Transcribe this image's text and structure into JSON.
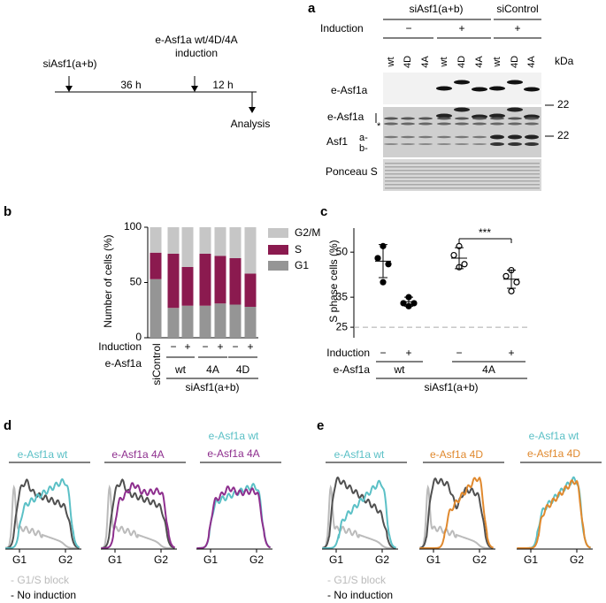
{
  "panel_labels": [
    "a",
    "b",
    "c",
    "d",
    "e"
  ],
  "timeline": {
    "treatment": "siAsf1(a+b)",
    "induction": [
      "e-Asf1a wt/4D/4A",
      "induction"
    ],
    "intervals": [
      "36 h",
      "12 h"
    ],
    "end": "Analysis"
  },
  "blot": {
    "groups": [
      "siAsf1(a+b)",
      "siControl"
    ],
    "induction_label": "Induction",
    "induction": [
      "−",
      "+",
      "+"
    ],
    "lanes": [
      "wt",
      "4D",
      "4A",
      "wt",
      "4D",
      "4A",
      "wt",
      "4D",
      "4A"
    ],
    "unit": "kDa",
    "rows": [
      "e-Asf1a",
      "e-Asf1a",
      "Asf1",
      "Ponceau S"
    ],
    "asf1_bands": [
      "a-",
      "b-"
    ],
    "asterisk": "*",
    "markers": [
      "22",
      "22"
    ]
  },
  "chart_data": [
    {
      "type": "bar",
      "stacked": true,
      "ylabel": "Number of cells (%)",
      "categories": [
        "siControl",
        "−",
        "+",
        "−",
        "+",
        "−",
        "+"
      ],
      "series": [
        {
          "name": "G1",
          "color": "#959595",
          "values": [
            53,
            27,
            29,
            29,
            31,
            30,
            28
          ]
        },
        {
          "name": "S",
          "color": "#8b1a4f",
          "values": [
            24,
            49,
            35,
            47,
            43,
            42,
            30
          ]
        },
        {
          "name": "G2/M",
          "color": "#c6c6c6",
          "values": [
            23,
            24,
            36,
            24,
            26,
            28,
            42
          ]
        }
      ],
      "ylim": [
        0,
        100
      ],
      "yticks": [
        0,
        50,
        100
      ],
      "induction_label": "Induction",
      "construct_label": "e-Asf1a",
      "constructs": [
        "wt",
        "4A",
        "4D"
      ],
      "group": "siAsf1(a+b)"
    },
    {
      "type": "scatter",
      "ylabel": "S phase cells (%)",
      "ylim": [
        21.5,
        58
      ],
      "yticks": [
        25,
        35,
        50
      ],
      "reference_line": 25,
      "significance": "***",
      "induction_label": "Induction",
      "categories": [
        "−",
        "+"
      ],
      "construct_label": "e-Asf1a",
      "group": "siAsf1(a+b)",
      "series": [
        {
          "name": "wt",
          "filled": true,
          "values": [
            [
              52,
              48,
              46,
              40
            ],
            [
              35,
              33,
              33,
              32
            ]
          ],
          "mean": [
            47,
            33.5
          ],
          "sd": [
            5.5,
            1.5
          ]
        },
        {
          "name": "4A",
          "filled": false,
          "values": [
            [
              52,
              49,
              46,
              45
            ],
            [
              44,
              42,
              40,
              37
            ]
          ],
          "mean": [
            48,
            41
          ],
          "sd": [
            3.5,
            3
          ]
        }
      ]
    }
  ],
  "flow": [
    {
      "plots": [
        {
          "titles": [
            {
              "text": "e-Asf1a wt",
              "color": "#5bc0c6"
            }
          ]
        },
        {
          "titles": [
            {
              "text": "e-Asf1a 4A",
              "color": "#8e2f8e"
            }
          ]
        },
        {
          "titles": [
            {
              "text": "e-Asf1a wt",
              "color": "#5bc0c6"
            },
            {
              "text": "e-Asf1a 4A",
              "color": "#8e2f8e"
            }
          ]
        }
      ],
      "x_labels": [
        "G1",
        "G2"
      ],
      "legend": [
        {
          "text": "- G1/S block",
          "color": "#bbbbbb"
        },
        {
          "text": "- No induction",
          "color": "#000000"
        }
      ]
    },
    {
      "plots": [
        {
          "titles": [
            {
              "text": "e-Asf1a wt",
              "color": "#5bc0c6"
            }
          ]
        },
        {
          "titles": [
            {
              "text": "e-Asf1a 4D",
              "color": "#e0892e"
            }
          ]
        },
        {
          "titles": [
            {
              "text": "e-Asf1a wt",
              "color": "#5bc0c6"
            },
            {
              "text": "e-Asf1a 4D",
              "color": "#e0892e"
            }
          ]
        }
      ],
      "x_labels": [
        "G1",
        "G2"
      ],
      "legend": [
        {
          "text": "- G1/S block",
          "color": "#bbbbbb"
        },
        {
          "text": "- No induction",
          "color": "#000000"
        }
      ]
    }
  ]
}
